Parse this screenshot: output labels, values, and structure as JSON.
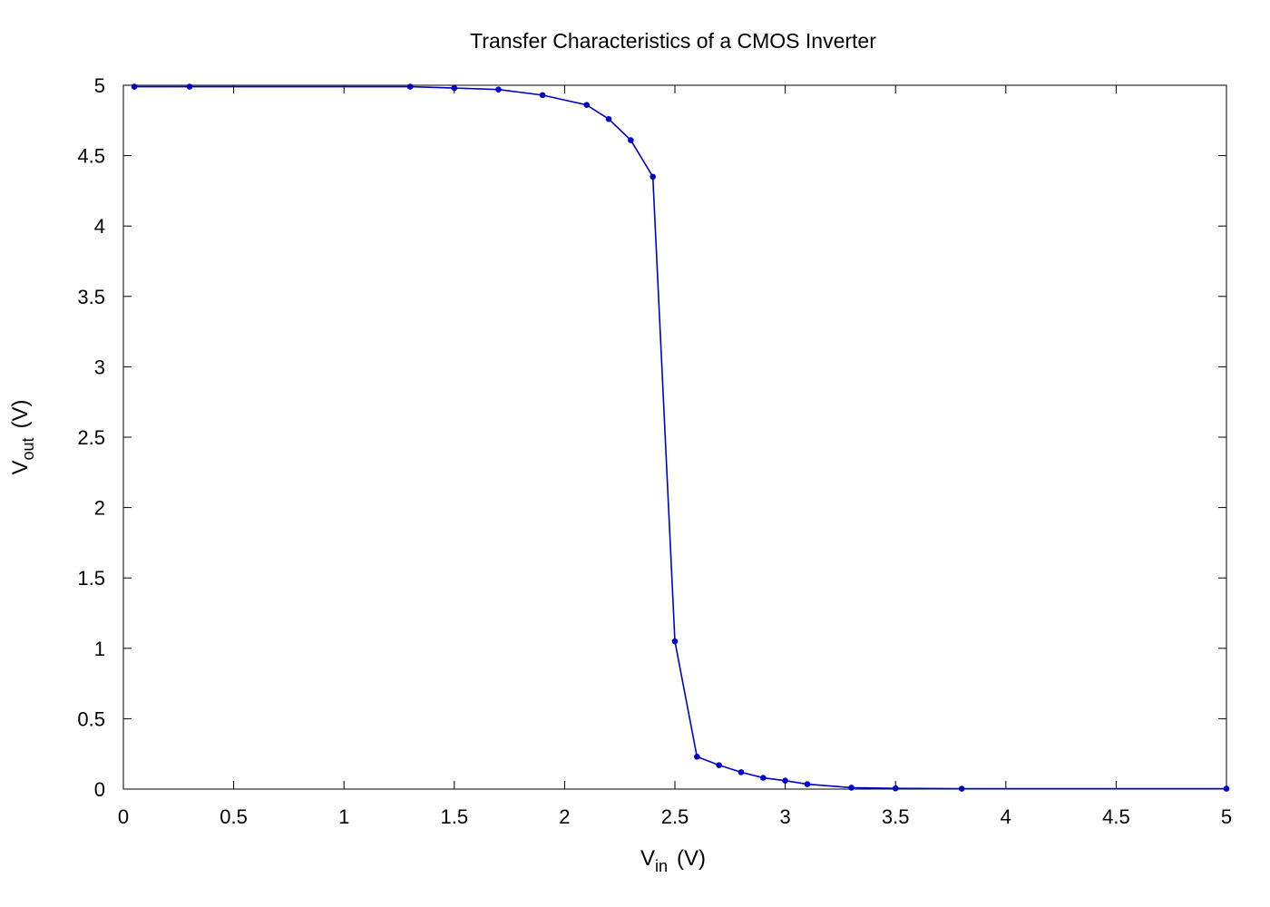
{
  "chart_data": {
    "type": "line",
    "title": "Transfer Characteristics of a CMOS Inverter",
    "xlabel": {
      "main": "V",
      "sub": "in",
      "unit": "(V)"
    },
    "ylabel": {
      "main": "V",
      "sub": "out",
      "unit": "(V)"
    },
    "xlim": [
      0,
      5
    ],
    "ylim": [
      0,
      5
    ],
    "xticks": [
      0,
      0.5,
      1,
      1.5,
      2,
      2.5,
      3,
      3.5,
      4,
      4.5,
      5
    ],
    "xtick_labels": [
      "0",
      "0.5",
      "1",
      "1.5",
      "2",
      "2.5",
      "3",
      "3.5",
      "4",
      "4.5",
      "5"
    ],
    "yticks": [
      0,
      0.5,
      1,
      1.5,
      2,
      2.5,
      3,
      3.5,
      4,
      4.5,
      5
    ],
    "ytick_labels": [
      "0",
      "0.5",
      "1",
      "1.5",
      "2",
      "2.5",
      "3",
      "3.5",
      "4",
      "4.5",
      "5"
    ],
    "grid": false,
    "series": [
      {
        "color": "#0000cc",
        "marker": "dot",
        "x": [
          0.05,
          0.3,
          1.3,
          1.5,
          1.7,
          1.9,
          2.1,
          2.2,
          2.3,
          2.4,
          2.5,
          2.6,
          2.7,
          2.8,
          2.9,
          3.0,
          3.1,
          3.3,
          3.5,
          3.8,
          5.0
        ],
        "y": [
          4.99,
          4.99,
          4.99,
          4.98,
          4.97,
          4.93,
          4.86,
          4.76,
          4.61,
          4.35,
          1.05,
          0.23,
          0.17,
          0.12,
          0.08,
          0.06,
          0.035,
          0.01,
          0.005,
          0.003,
          0.003
        ]
      }
    ]
  }
}
